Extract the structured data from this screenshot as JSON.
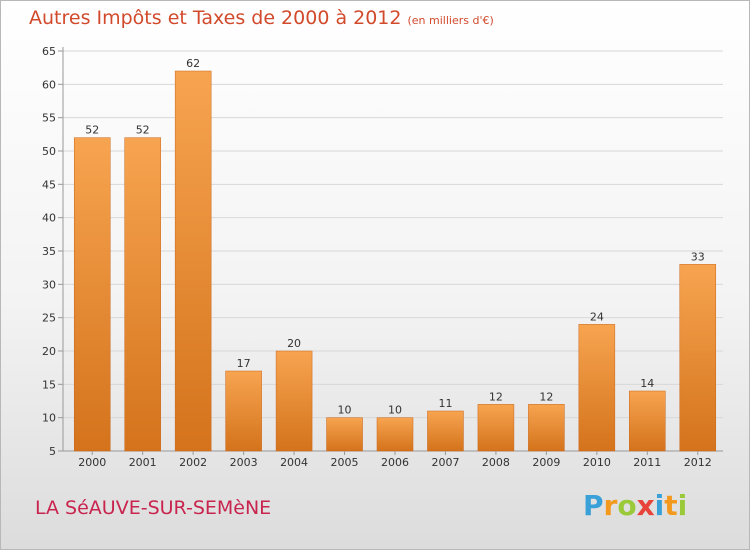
{
  "title": "Autres Impôts et Taxes de 2000 à 2012",
  "subtitle": "(en milliers d'€)",
  "commune": "LA SéAUVE-SUR-SEMèNE",
  "logo": {
    "text": "Proxiti",
    "letters": [
      {
        "char": "P",
        "color": "#3aa0d8"
      },
      {
        "char": "r",
        "color": "#f39a1e"
      },
      {
        "char": "o",
        "color": "#9ac93a"
      },
      {
        "char": "x",
        "color": "#e8433a"
      },
      {
        "char": "i",
        "color": "#3aa0d8"
      },
      {
        "char": "t",
        "color": "#f39a1e"
      },
      {
        "char": "i",
        "color": "#9ac93a"
      }
    ]
  },
  "colors": {
    "bar_light": "#f7a450",
    "bar_dark": "#d4731c",
    "title": "#d24a2c",
    "commune": "#c8244e"
  },
  "chart_data": {
    "type": "bar",
    "categories": [
      "2000",
      "2001",
      "2002",
      "2003",
      "2004",
      "2005",
      "2006",
      "2007",
      "2008",
      "2009",
      "2010",
      "2011",
      "2012"
    ],
    "values": [
      52,
      52,
      62,
      17,
      20,
      10,
      10,
      11,
      12,
      12,
      24,
      14,
      33
    ],
    "ylim": [
      5,
      65
    ],
    "yticks": [
      5,
      10,
      15,
      20,
      25,
      30,
      35,
      40,
      45,
      50,
      55,
      60,
      65
    ],
    "grid": true,
    "legend": "none"
  }
}
